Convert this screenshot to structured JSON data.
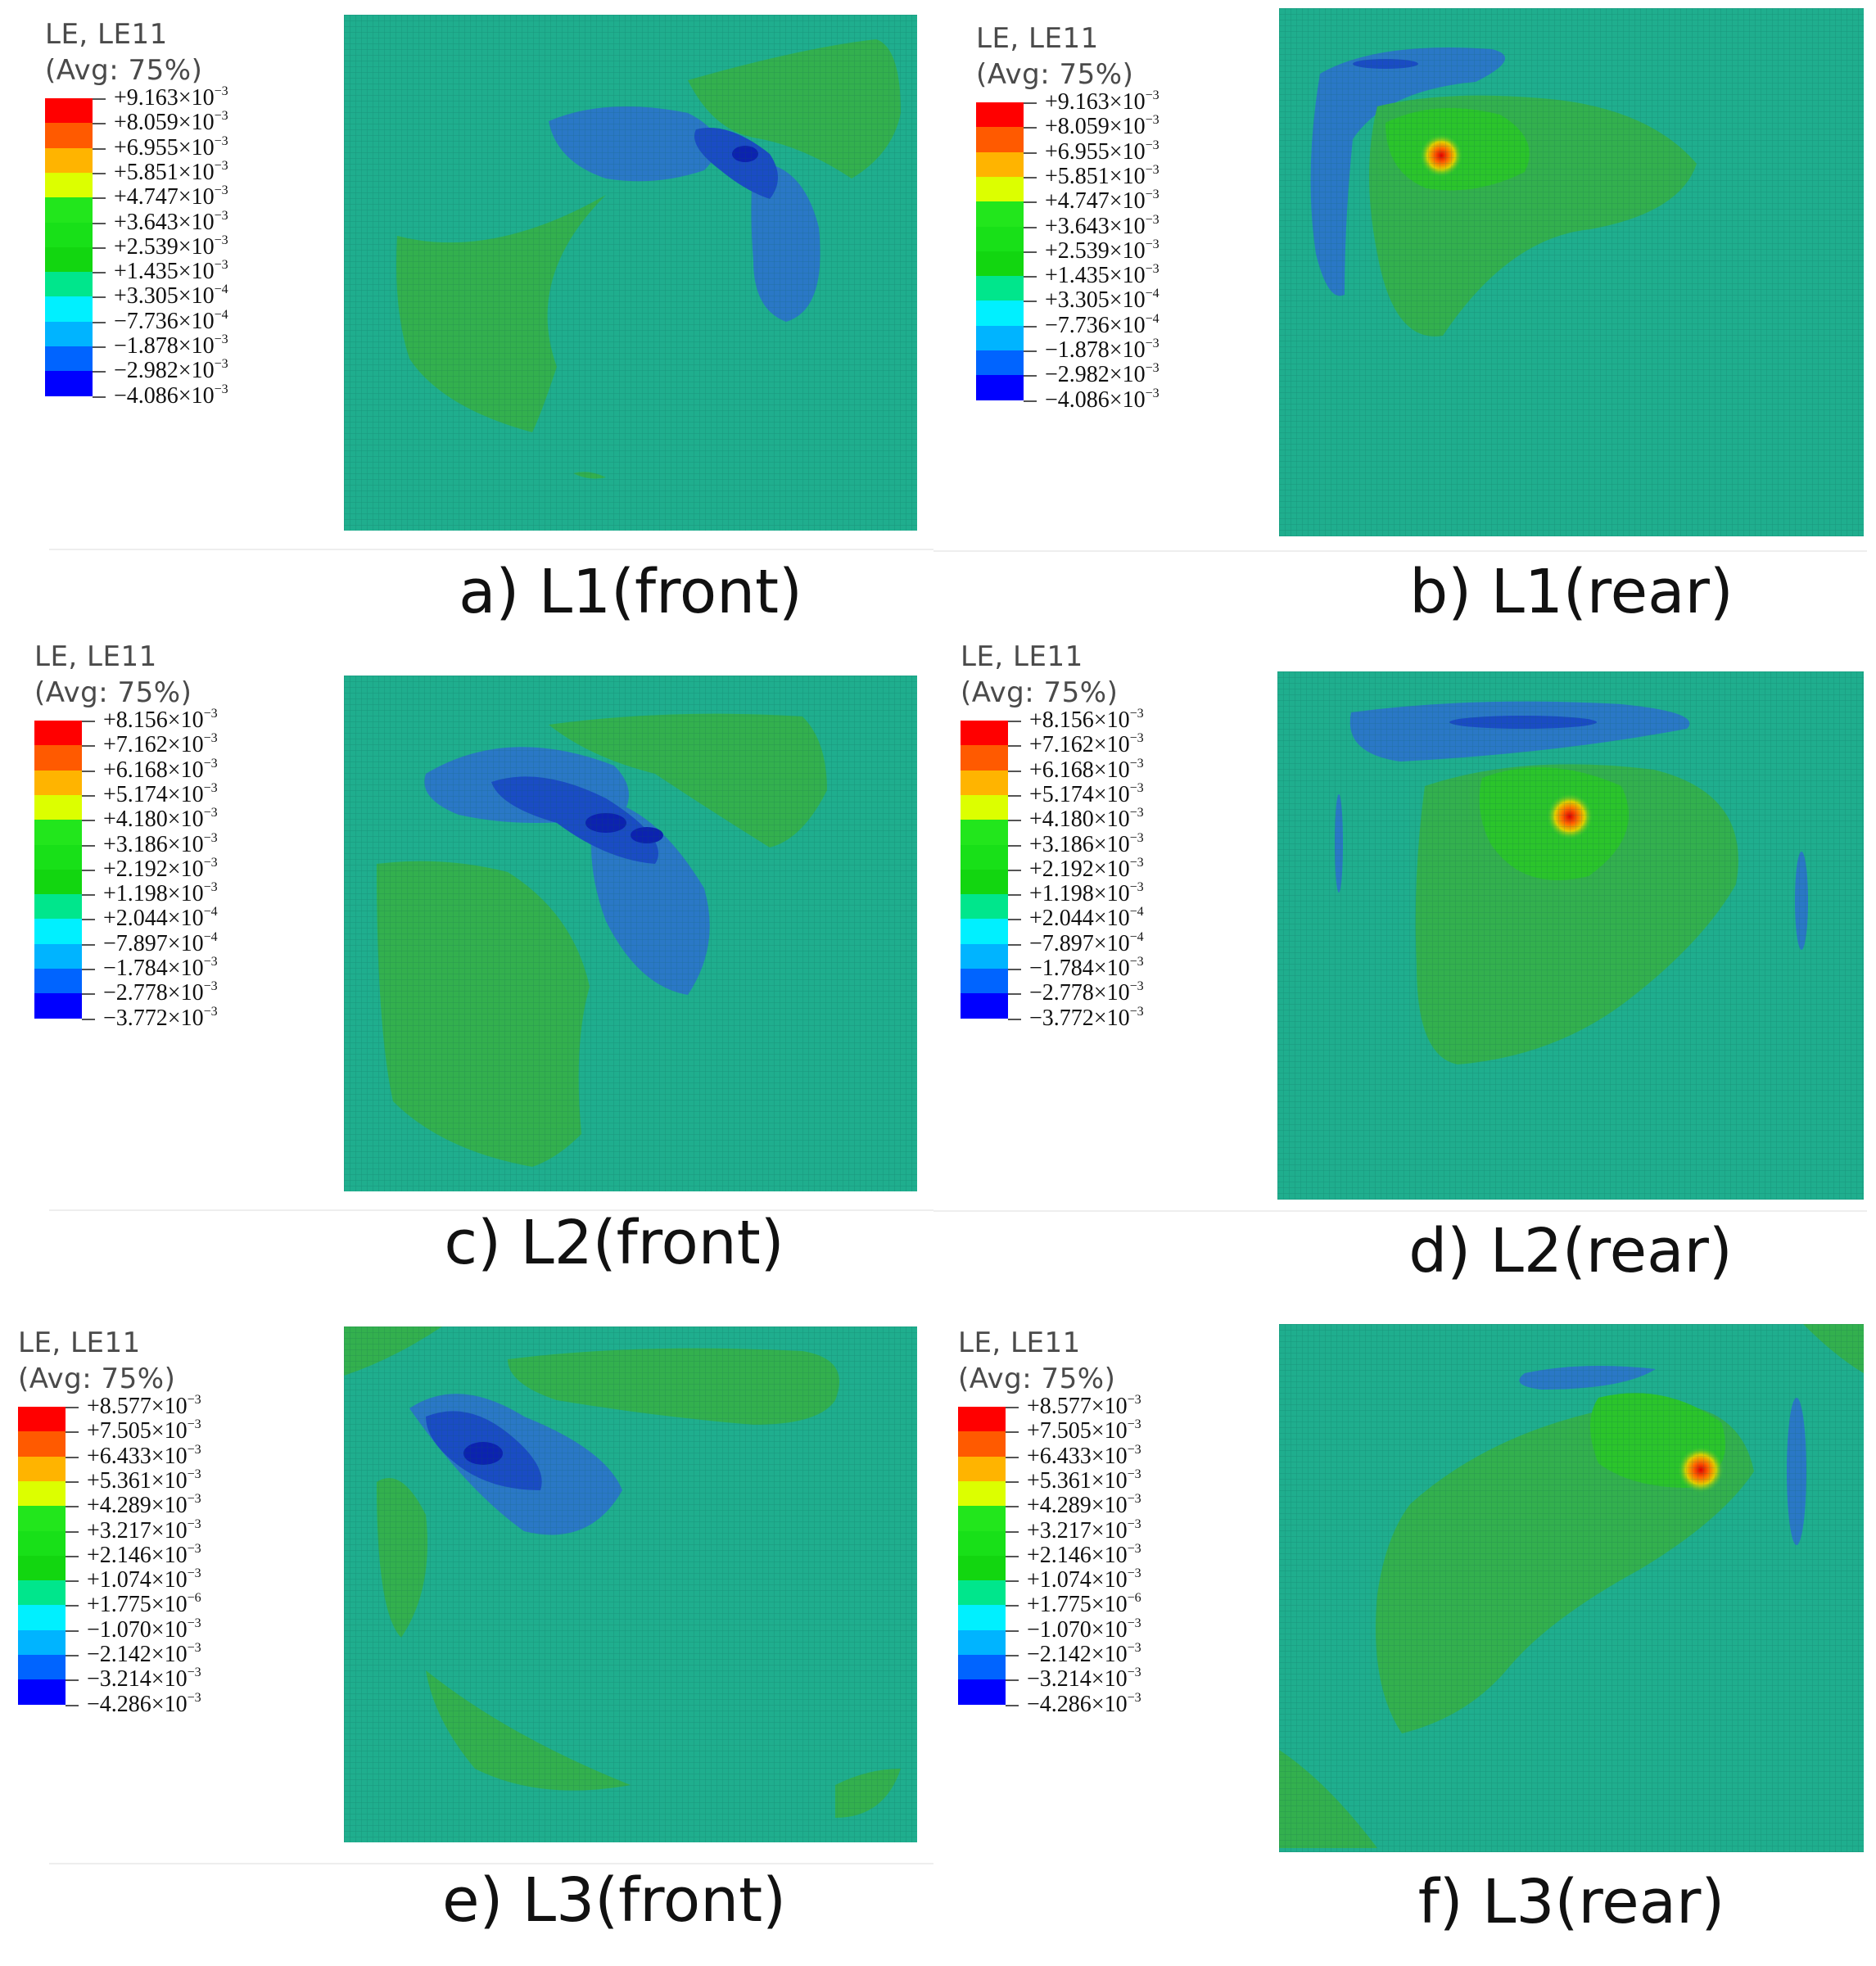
{
  "legend_colors": [
    "#ff0000",
    "#ff5a00",
    "#ffb400",
    "#dcff00",
    "#22e61c",
    "#18e018",
    "#12d610",
    "#00e68c",
    "#00f0ff",
    "#00b4ff",
    "#0064ff",
    "#0000ff"
  ],
  "panels": [
    {
      "caption": "a) L1(front)",
      "legend": {
        "title_line1": "LE, LE11",
        "title_line2": "(Avg: 75%)",
        "values": [
          {
            "mantissa": "+9.163×10",
            "exp": "−3"
          },
          {
            "mantissa": "+8.059×10",
            "exp": "−3"
          },
          {
            "mantissa": "+6.955×10",
            "exp": "−3"
          },
          {
            "mantissa": "+5.851×10",
            "exp": "−3"
          },
          {
            "mantissa": "+4.747×10",
            "exp": "−3"
          },
          {
            "mantissa": "+3.643×10",
            "exp": "−3"
          },
          {
            "mantissa": "+2.539×10",
            "exp": "−3"
          },
          {
            "mantissa": "+1.435×10",
            "exp": "−3"
          },
          {
            "mantissa": "+3.305×10",
            "exp": "−4"
          },
          {
            "mantissa": "−7.736×10",
            "exp": "−4"
          },
          {
            "mantissa": "−1.878×10",
            "exp": "−3"
          },
          {
            "mantissa": "−2.982×10",
            "exp": "−3"
          },
          {
            "mantissa": "−4.086×10",
            "exp": "−3"
          }
        ]
      }
    },
    {
      "caption": "b) L1(rear)",
      "legend": {
        "title_line1": "LE, LE11",
        "title_line2": "(Avg: 75%)",
        "values": [
          {
            "mantissa": "+9.163×10",
            "exp": "−3"
          },
          {
            "mantissa": "+8.059×10",
            "exp": "−3"
          },
          {
            "mantissa": "+6.955×10",
            "exp": "−3"
          },
          {
            "mantissa": "+5.851×10",
            "exp": "−3"
          },
          {
            "mantissa": "+4.747×10",
            "exp": "−3"
          },
          {
            "mantissa": "+3.643×10",
            "exp": "−3"
          },
          {
            "mantissa": "+2.539×10",
            "exp": "−3"
          },
          {
            "mantissa": "+1.435×10",
            "exp": "−3"
          },
          {
            "mantissa": "+3.305×10",
            "exp": "−4"
          },
          {
            "mantissa": "−7.736×10",
            "exp": "−4"
          },
          {
            "mantissa": "−1.878×10",
            "exp": "−3"
          },
          {
            "mantissa": "−2.982×10",
            "exp": "−3"
          },
          {
            "mantissa": "−4.086×10",
            "exp": "−3"
          }
        ]
      }
    },
    {
      "caption": "c) L2(front)",
      "legend": {
        "title_line1": "LE, LE11",
        "title_line2": "(Avg: 75%)",
        "values": [
          {
            "mantissa": "+8.156×10",
            "exp": "−3"
          },
          {
            "mantissa": "+7.162×10",
            "exp": "−3"
          },
          {
            "mantissa": "+6.168×10",
            "exp": "−3"
          },
          {
            "mantissa": "+5.174×10",
            "exp": "−3"
          },
          {
            "mantissa": "+4.180×10",
            "exp": "−3"
          },
          {
            "mantissa": "+3.186×10",
            "exp": "−3"
          },
          {
            "mantissa": "+2.192×10",
            "exp": "−3"
          },
          {
            "mantissa": "+1.198×10",
            "exp": "−3"
          },
          {
            "mantissa": "+2.044×10",
            "exp": "−4"
          },
          {
            "mantissa": "−7.897×10",
            "exp": "−4"
          },
          {
            "mantissa": "−1.784×10",
            "exp": "−3"
          },
          {
            "mantissa": "−2.778×10",
            "exp": "−3"
          },
          {
            "mantissa": "−3.772×10",
            "exp": "−3"
          }
        ]
      }
    },
    {
      "caption": "d) L2(rear)",
      "legend": {
        "title_line1": "LE, LE11",
        "title_line2": "(Avg: 75%)",
        "values": [
          {
            "mantissa": "+8.156×10",
            "exp": "−3"
          },
          {
            "mantissa": "+7.162×10",
            "exp": "−3"
          },
          {
            "mantissa": "+6.168×10",
            "exp": "−3"
          },
          {
            "mantissa": "+5.174×10",
            "exp": "−3"
          },
          {
            "mantissa": "+4.180×10",
            "exp": "−3"
          },
          {
            "mantissa": "+3.186×10",
            "exp": "−3"
          },
          {
            "mantissa": "+2.192×10",
            "exp": "−3"
          },
          {
            "mantissa": "+1.198×10",
            "exp": "−3"
          },
          {
            "mantissa": "+2.044×10",
            "exp": "−4"
          },
          {
            "mantissa": "−7.897×10",
            "exp": "−4"
          },
          {
            "mantissa": "−1.784×10",
            "exp": "−3"
          },
          {
            "mantissa": "−2.778×10",
            "exp": "−3"
          },
          {
            "mantissa": "−3.772×10",
            "exp": "−3"
          }
        ]
      }
    },
    {
      "caption": "e) L3(front)",
      "legend": {
        "title_line1": "LE, LE11",
        "title_line2": "(Avg: 75%)",
        "values": [
          {
            "mantissa": "+8.577×10",
            "exp": "−3"
          },
          {
            "mantissa": "+7.505×10",
            "exp": "−3"
          },
          {
            "mantissa": "+6.433×10",
            "exp": "−3"
          },
          {
            "mantissa": "+5.361×10",
            "exp": "−3"
          },
          {
            "mantissa": "+4.289×10",
            "exp": "−3"
          },
          {
            "mantissa": "+3.217×10",
            "exp": "−3"
          },
          {
            "mantissa": "+2.146×10",
            "exp": "−3"
          },
          {
            "mantissa": "+1.074×10",
            "exp": "−3"
          },
          {
            "mantissa": "+1.775×10",
            "exp": "−6"
          },
          {
            "mantissa": "−1.070×10",
            "exp": "−3"
          },
          {
            "mantissa": "−2.142×10",
            "exp": "−3"
          },
          {
            "mantissa": "−3.214×10",
            "exp": "−3"
          },
          {
            "mantissa": "−4.286×10",
            "exp": "−3"
          }
        ]
      }
    },
    {
      "caption": "f) L3(rear)",
      "legend": {
        "title_line1": "LE, LE11",
        "title_line2": "(Avg: 75%)",
        "values": [
          {
            "mantissa": "+8.577×10",
            "exp": "−3"
          },
          {
            "mantissa": "+7.505×10",
            "exp": "−3"
          },
          {
            "mantissa": "+6.433×10",
            "exp": "−3"
          },
          {
            "mantissa": "+5.361×10",
            "exp": "−3"
          },
          {
            "mantissa": "+4.289×10",
            "exp": "−3"
          },
          {
            "mantissa": "+3.217×10",
            "exp": "−3"
          },
          {
            "mantissa": "+2.146×10",
            "exp": "−3"
          },
          {
            "mantissa": "+1.074×10",
            "exp": "−3"
          },
          {
            "mantissa": "+1.775×10",
            "exp": "−6"
          },
          {
            "mantissa": "−1.070×10",
            "exp": "−3"
          },
          {
            "mantissa": "−2.142×10",
            "exp": "−3"
          },
          {
            "mantissa": "−3.214×10",
            "exp": "−3"
          },
          {
            "mantissa": "−4.286×10",
            "exp": "−3"
          }
        ]
      }
    }
  ]
}
